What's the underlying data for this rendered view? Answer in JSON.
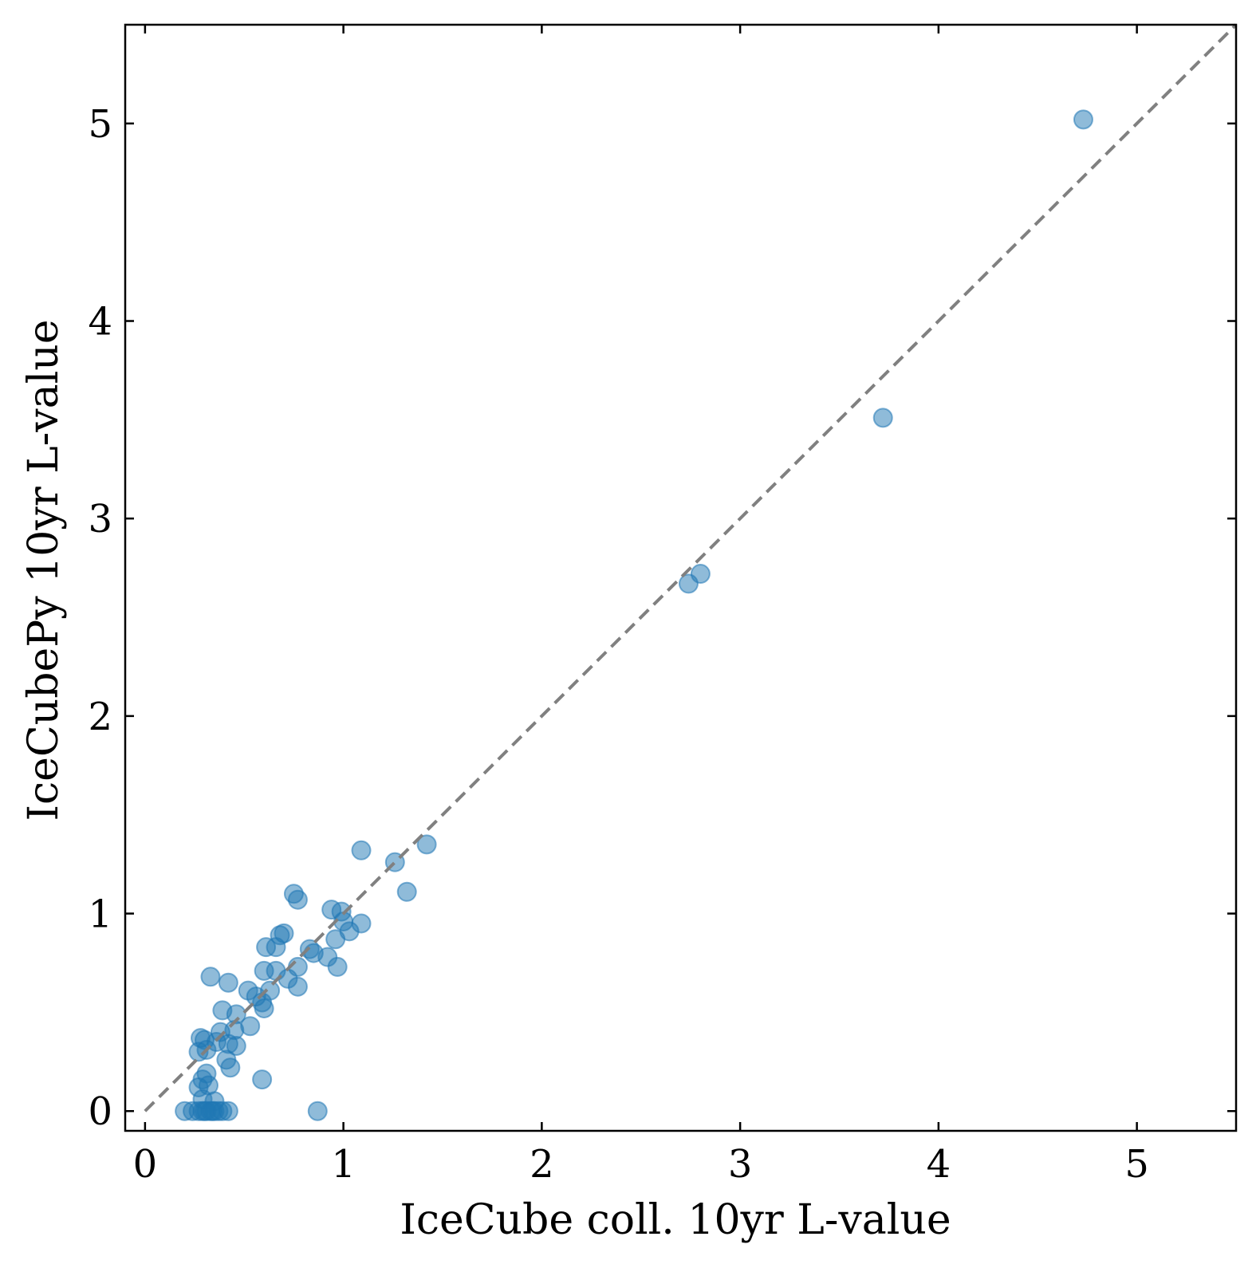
{
  "chart_data": {
    "type": "scatter",
    "title": "",
    "xlabel": "IceCube coll. 10yr L-value",
    "ylabel": "IceCubePy 10yr L-value",
    "xlim": [
      -0.1,
      5.5
    ],
    "ylim": [
      -0.1,
      5.5
    ],
    "x_ticks": [
      0,
      1,
      2,
      3,
      4,
      5
    ],
    "y_ticks": [
      0,
      1,
      2,
      3,
      4,
      5
    ],
    "x_tick_labels": [
      "0",
      "1",
      "2",
      "3",
      "4",
      "5"
    ],
    "y_tick_labels": [
      "0",
      "1",
      "2",
      "3",
      "4",
      "5"
    ],
    "grid": false,
    "reference_line": {
      "style": "dashed",
      "color": "#808080",
      "x": [
        0,
        5.5
      ],
      "y": [
        0,
        5.5
      ]
    },
    "marker_color": "#1f77b4",
    "marker_alpha": 0.5,
    "points": [
      [
        4.73,
        5.02
      ],
      [
        3.72,
        3.51
      ],
      [
        2.8,
        2.72
      ],
      [
        2.74,
        2.67
      ],
      [
        1.42,
        1.35
      ],
      [
        1.09,
        1.32
      ],
      [
        1.26,
        1.26
      ],
      [
        1.32,
        1.11
      ],
      [
        0.75,
        1.1
      ],
      [
        0.77,
        1.07
      ],
      [
        0.94,
        1.02
      ],
      [
        0.99,
        1.01
      ],
      [
        1.0,
        0.96
      ],
      [
        1.09,
        0.95
      ],
      [
        1.03,
        0.91
      ],
      [
        0.96,
        0.87
      ],
      [
        0.7,
        0.9
      ],
      [
        0.68,
        0.89
      ],
      [
        0.61,
        0.83
      ],
      [
        0.66,
        0.83
      ],
      [
        0.83,
        0.82
      ],
      [
        0.85,
        0.8
      ],
      [
        0.92,
        0.78
      ],
      [
        0.97,
        0.73
      ],
      [
        0.77,
        0.73
      ],
      [
        0.6,
        0.71
      ],
      [
        0.66,
        0.71
      ],
      [
        0.72,
        0.67
      ],
      [
        0.77,
        0.63
      ],
      [
        0.33,
        0.68
      ],
      [
        0.42,
        0.65
      ],
      [
        0.52,
        0.61
      ],
      [
        0.56,
        0.58
      ],
      [
        0.63,
        0.61
      ],
      [
        0.59,
        0.55
      ],
      [
        0.6,
        0.52
      ],
      [
        0.39,
        0.51
      ],
      [
        0.46,
        0.49
      ],
      [
        0.53,
        0.43
      ],
      [
        0.38,
        0.4
      ],
      [
        0.45,
        0.41
      ],
      [
        0.28,
        0.37
      ],
      [
        0.3,
        0.36
      ],
      [
        0.36,
        0.35
      ],
      [
        0.42,
        0.34
      ],
      [
        0.46,
        0.33
      ],
      [
        0.27,
        0.3
      ],
      [
        0.31,
        0.31
      ],
      [
        0.41,
        0.26
      ],
      [
        0.43,
        0.22
      ],
      [
        0.31,
        0.19
      ],
      [
        0.29,
        0.16
      ],
      [
        0.59,
        0.16
      ],
      [
        0.32,
        0.13
      ],
      [
        0.27,
        0.12
      ],
      [
        0.35,
        0.05
      ],
      [
        0.29,
        0.06
      ],
      [
        0.87,
        0.0
      ],
      [
        0.2,
        0.0
      ],
      [
        0.24,
        0.0
      ],
      [
        0.27,
        0.0
      ],
      [
        0.29,
        0.0
      ],
      [
        0.31,
        0.0
      ],
      [
        0.33,
        0.0
      ],
      [
        0.35,
        0.0
      ],
      [
        0.37,
        0.0
      ],
      [
        0.39,
        0.0
      ],
      [
        0.42,
        0.0
      ],
      [
        0.3,
        0.0
      ],
      [
        0.34,
        0.0
      ]
    ]
  }
}
